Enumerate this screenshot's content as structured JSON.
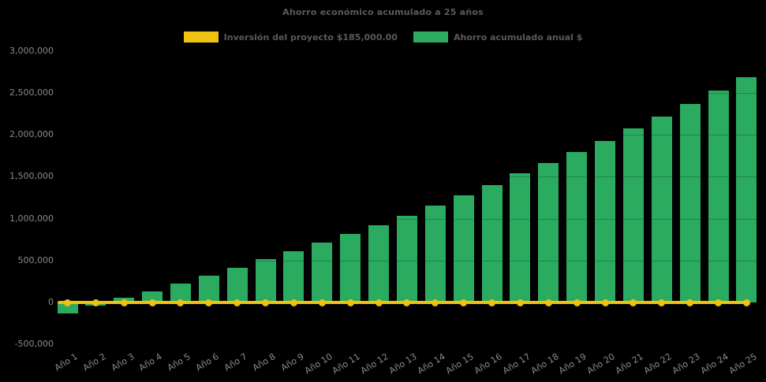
{
  "title": "Ahorro económico acumulado a 25 años",
  "legend": {
    "items": [
      {
        "label": "Inversión del proyecto $185,000.00",
        "color": "#edc211"
      },
      {
        "label": "Ahorro acumulado anual $",
        "color": "#2bab60"
      }
    ]
  },
  "chart_data": {
    "type": "bar",
    "title": "Ahorro económico acumulado a 25 años",
    "background_color": "#000000",
    "title_color": "#5a5a5a",
    "axis_label_color": "#8a8a8a",
    "grid": false,
    "legend_position": "top-center",
    "xlabel": "",
    "ylabel": "",
    "ylim": [
      -500000,
      3000000
    ],
    "ytick_step": 500000,
    "ytick_labels": [
      "-500,000",
      "0",
      "500,000",
      "1,000,000",
      "1,500,000",
      "2,000,000",
      "2,500,000",
      "3,000,000"
    ],
    "categories": [
      "Año 1",
      "Año 2",
      "Año 3",
      "Año 4",
      "Año 5",
      "Año 6",
      "Año 7",
      "Año 8",
      "Año 9",
      "Año 10",
      "Año 11",
      "Año 12",
      "Año 13",
      "Año 14",
      "Año 15",
      "Año 16",
      "Año 17",
      "Año 18",
      "Año 19",
      "Año 20",
      "Año 21",
      "Año 22",
      "Año 23",
      "Año 24",
      "Año 25"
    ],
    "series": [
      {
        "name": "Inversión del proyecto $185,000.00",
        "type": "line",
        "color": "#edc211",
        "markers": true,
        "values": [
          0,
          0,
          0,
          0,
          0,
          0,
          0,
          0,
          0,
          0,
          0,
          0,
          0,
          0,
          0,
          0,
          0,
          0,
          0,
          0,
          0,
          0,
          0,
          0,
          0
        ]
      },
      {
        "name": "Ahorro acumulado anual $",
        "type": "bar",
        "color": "#2bab60",
        "values": [
          -135000,
          -40000,
          55000,
          135000,
          230000,
          315000,
          410000,
          515000,
          610000,
          710000,
          815000,
          925000,
          1035000,
          1155000,
          1275000,
          1400000,
          1540000,
          1660000,
          1795000,
          1925000,
          2075000,
          2220000,
          2370000,
          2530000,
          2690000
        ]
      }
    ]
  }
}
